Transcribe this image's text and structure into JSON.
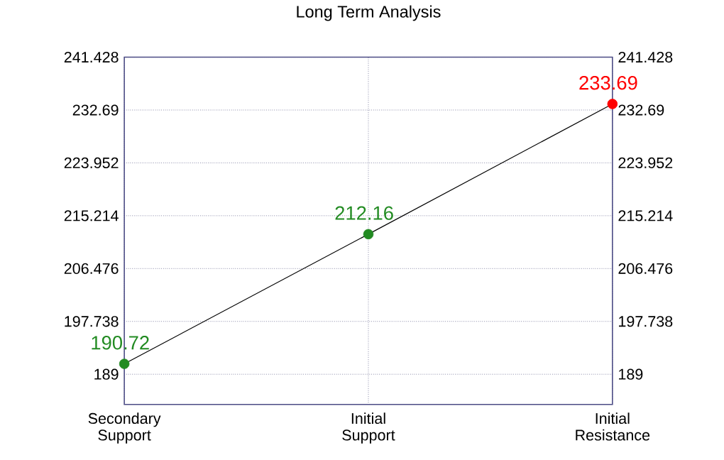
{
  "chart_data": {
    "type": "line",
    "title": "Long Term Analysis",
    "categories": [
      "Secondary\nSupport",
      "Initial\nSupport",
      "Initial\nResistance"
    ],
    "series": [
      {
        "color": "#000000",
        "colors": [
          "#228b22",
          "#228b22",
          "#ff0000"
        ],
        "values": [
          190.72,
          212.16,
          233.69
        ]
      }
    ],
    "data_labels": true,
    "marker": "circle",
    "grid": true,
    "ylim": [
      184,
      241.428
    ],
    "yticks": [
      189,
      197.738,
      206.476,
      215.214,
      223.952,
      232.69,
      241.428
    ],
    "y2lim": [
      184,
      241.428
    ],
    "y2ticks": [
      189,
      197.738,
      206.476,
      215.214,
      223.952,
      232.69,
      241.428
    ]
  }
}
